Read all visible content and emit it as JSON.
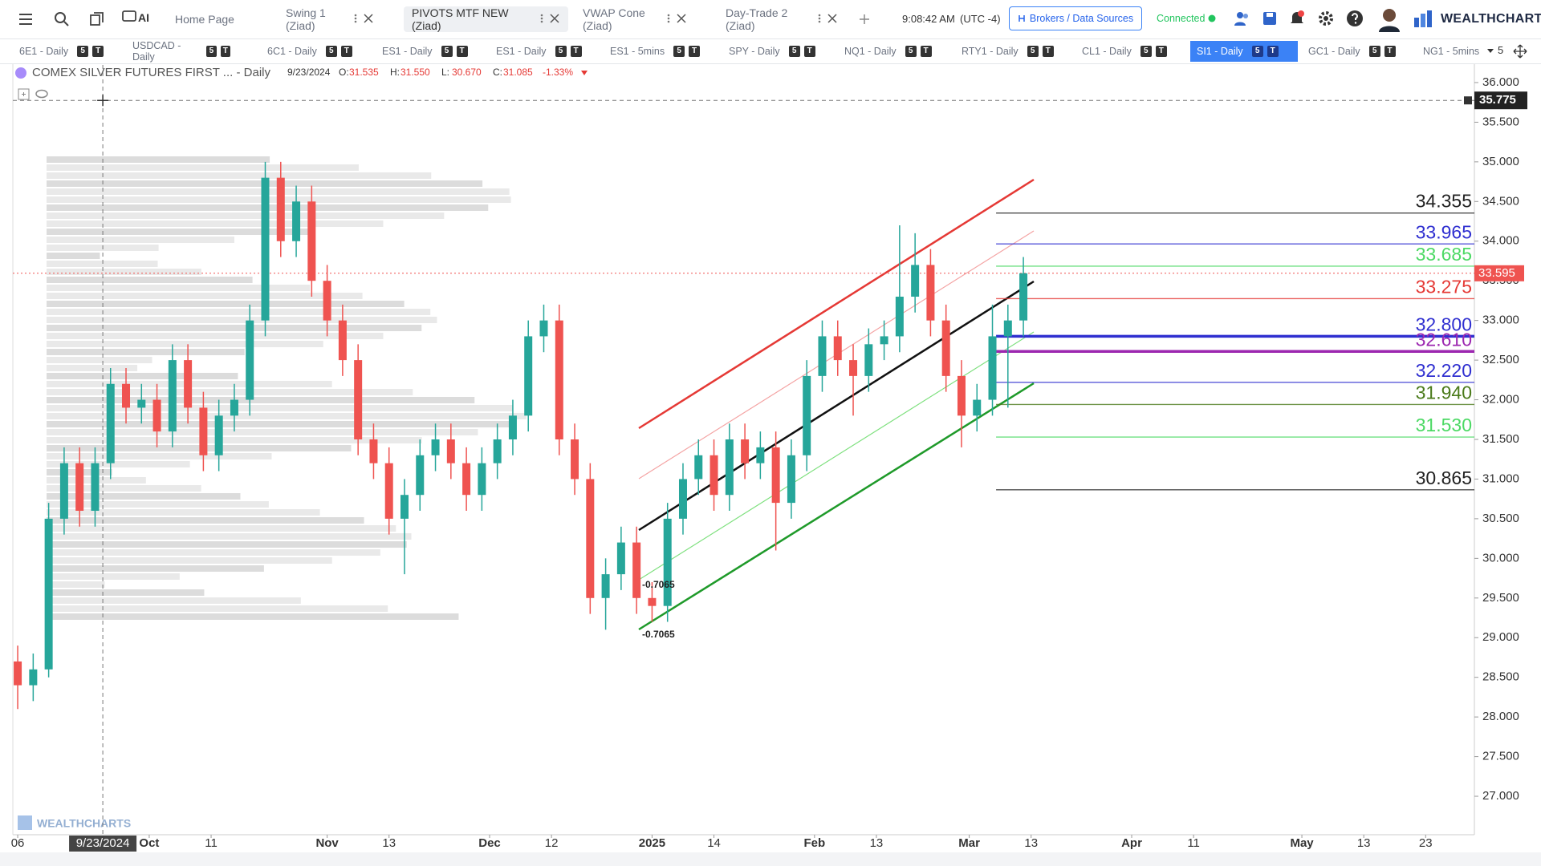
{
  "toolbar": {
    "ai_label": "AI",
    "tabs": [
      "Home Page",
      "Swing 1 (Ziad)",
      "PIVOTS MTF NEW (Ziad)",
      "VWAP Cone (Ziad)",
      "Day-Trade 2 (Ziad)"
    ],
    "active_tab": 2,
    "time": "9:08:42 AM",
    "timezone": "(UTC -4)",
    "brokers_button": "Brokers / Data Sources",
    "status": "Connected",
    "brand": "WEALTHCHARTS"
  },
  "symbol_tabs": [
    {
      "label": "6E1 - Daily",
      "badges": [
        "5",
        "T"
      ]
    },
    {
      "label": "USDCAD - Daily",
      "badges": [
        "5",
        "T"
      ]
    },
    {
      "label": "6C1 - Daily",
      "badges": [
        "5",
        "T"
      ]
    },
    {
      "label": "ES1 - Daily",
      "badges": [
        "5",
        "T"
      ]
    },
    {
      "label": "ES1 - Daily",
      "badges": [
        "5",
        "T"
      ]
    },
    {
      "label": "ES1 - 5mins",
      "badges": [
        "5",
        "T"
      ]
    },
    {
      "label": "SPY - Daily",
      "badges": [
        "5",
        "T"
      ]
    },
    {
      "label": "NQ1 - Daily",
      "badges": [
        "5",
        "T"
      ]
    },
    {
      "label": "RTY1 - Daily",
      "badges": [
        "5",
        "T"
      ]
    },
    {
      "label": "CL1 - Daily",
      "badges": [
        "5",
        "T"
      ]
    },
    {
      "label": "SI1 - Daily",
      "badges": [
        "5",
        "T"
      ]
    },
    {
      "label": "GC1 - Daily",
      "badges": [
        "5",
        "T"
      ]
    },
    {
      "label": "NG1 - 5mins",
      "badges": []
    }
  ],
  "active_symbol_tab": 10,
  "symbol_tabs_overflow": "5",
  "chart_legend": {
    "date": "9/23/2024",
    "items": [
      {
        "key": "O:",
        "value": "31.535"
      },
      {
        "key": "H:",
        "value": "31.550"
      },
      {
        "key": "L:",
        "value": "30.670"
      },
      {
        "key": "C:",
        "value": "31.085"
      }
    ],
    "change": "-1.33%"
  },
  "watermark": "WEALTHCHARTS",
  "chart_data": {
    "type": "candlestick",
    "title": "COMEX SILVER FUTURES FIRST ... - Daily",
    "x": [
      0,
      2,
      4,
      6,
      8,
      10,
      12,
      14,
      16,
      18,
      20,
      22,
      24,
      26,
      28,
      30,
      32,
      34,
      36,
      38,
      40,
      42,
      44,
      46,
      48,
      50,
      52,
      54,
      56,
      58,
      60,
      62,
      64,
      66,
      68,
      70,
      72,
      74,
      76,
      78,
      80,
      82,
      84,
      86,
      88,
      90,
      92,
      94,
      96,
      98,
      100,
      102,
      104,
      106,
      108,
      110,
      112,
      114,
      116,
      118,
      120,
      122,
      124,
      126,
      128,
      130
    ],
    "open": [
      28.7,
      28.4,
      28.6,
      30.5,
      31.2,
      30.6,
      31.2,
      32.2,
      31.9,
      32.0,
      31.6,
      32.5,
      31.9,
      31.3,
      31.8,
      32.0,
      33.0,
      34.8,
      34.0,
      34.5,
      33.5,
      33.0,
      32.5,
      31.5,
      31.2,
      30.5,
      30.8,
      31.3,
      31.5,
      31.2,
      30.8,
      31.2,
      31.5,
      31.8,
      32.8,
      33.0,
      31.5,
      31.0,
      29.5,
      29.8,
      30.2,
      29.5,
      29.4,
      30.5,
      31.0,
      31.3,
      30.8,
      31.5,
      31.2,
      31.4,
      30.7,
      31.3,
      32.3,
      32.8,
      32.5,
      32.3,
      32.7,
      32.8,
      33.3,
      33.7,
      33.0,
      32.3,
      31.8,
      32.0,
      32.8,
      33.0
    ],
    "high": [
      28.9,
      28.8,
      30.7,
      31.4,
      31.4,
      31.4,
      32.4,
      32.4,
      32.2,
      32.2,
      32.7,
      32.7,
      32.1,
      32.0,
      32.2,
      33.2,
      35.0,
      35.0,
      34.7,
      34.7,
      33.7,
      33.2,
      32.7,
      31.7,
      31.4,
      31.0,
      31.5,
      31.7,
      31.7,
      31.4,
      31.4,
      31.7,
      32.0,
      33.0,
      33.2,
      33.2,
      31.7,
      31.2,
      30.0,
      30.4,
      30.4,
      29.7,
      30.7,
      31.2,
      31.5,
      31.5,
      31.7,
      31.7,
      31.6,
      31.6,
      31.5,
      32.5,
      33.0,
      33.0,
      32.7,
      32.9,
      33.0,
      34.2,
      34.1,
      33.9,
      33.2,
      32.5,
      32.2,
      33.2,
      33.2,
      33.8
    ],
    "low": [
      28.1,
      28.2,
      28.5,
      30.3,
      30.4,
      30.4,
      31.0,
      31.7,
      31.7,
      31.4,
      31.4,
      31.7,
      31.1,
      31.1,
      31.6,
      31.8,
      32.8,
      33.8,
      33.8,
      33.3,
      32.8,
      32.3,
      31.3,
      31.0,
      30.3,
      29.8,
      30.6,
      31.1,
      31.0,
      30.6,
      30.6,
      31.0,
      31.3,
      31.6,
      32.6,
      31.3,
      30.8,
      29.3,
      29.1,
      29.6,
      29.3,
      29.2,
      29.2,
      30.3,
      30.8,
      30.6,
      30.6,
      31.0,
      31.0,
      30.1,
      30.5,
      31.1,
      32.1,
      32.3,
      31.8,
      32.1,
      32.5,
      32.6,
      33.1,
      32.8,
      32.1,
      31.4,
      31.6,
      31.8,
      31.9,
      32.8
    ],
    "close": [
      28.4,
      28.6,
      30.5,
      31.2,
      30.6,
      31.2,
      32.2,
      31.9,
      32.0,
      31.6,
      32.5,
      31.9,
      31.3,
      31.8,
      32.0,
      33.0,
      34.8,
      34.0,
      34.5,
      33.5,
      33.0,
      32.5,
      31.5,
      31.2,
      30.5,
      30.8,
      31.3,
      31.5,
      31.2,
      30.8,
      31.2,
      31.5,
      31.8,
      32.8,
      33.0,
      31.5,
      31.0,
      29.5,
      29.8,
      30.2,
      29.5,
      29.4,
      30.5,
      31.0,
      31.3,
      30.8,
      31.5,
      31.2,
      31.4,
      30.7,
      31.3,
      32.3,
      32.8,
      32.5,
      32.3,
      32.7,
      32.8,
      33.3,
      33.7,
      33.0,
      32.3,
      31.8,
      32.0,
      32.8,
      33.0,
      33.595
    ],
    "up_color": "#26a69a",
    "down_color": "#ef5350",
    "xlim": [
      -0.63,
      188.3
    ],
    "xticks": [
      {
        "value": 0,
        "label": "06"
      },
      {
        "value": 17,
        "label": "Oct"
      },
      {
        "value": 25,
        "label": "11"
      },
      {
        "value": 40,
        "label": "Nov"
      },
      {
        "value": 48,
        "label": "13"
      },
      {
        "value": 61,
        "label": "Dec"
      },
      {
        "value": 69,
        "label": "12"
      },
      {
        "value": 82,
        "label": "2025"
      },
      {
        "value": 90,
        "label": "14"
      },
      {
        "value": 103,
        "label": "Feb"
      },
      {
        "value": 111,
        "label": "13"
      },
      {
        "value": 123,
        "label": "Mar"
      },
      {
        "value": 131,
        "label": "13"
      },
      {
        "value": 144,
        "label": "Apr"
      },
      {
        "value": 152,
        "label": "11"
      },
      {
        "value": 166,
        "label": "May"
      },
      {
        "value": 174,
        "label": "13"
      },
      {
        "value": 182,
        "label": "23"
      }
    ],
    "ylim": [
      26.515,
      36.222
    ],
    "yticks": [
      {
        "value": 27,
        "label": "27.000"
      },
      {
        "value": 27.5,
        "label": "27.500"
      },
      {
        "value": 28,
        "label": "28.000"
      },
      {
        "value": 28.5,
        "label": "28.500"
      },
      {
        "value": 29,
        "label": "29.000"
      },
      {
        "value": 29.5,
        "label": "29.500"
      },
      {
        "value": 30,
        "label": "30.000"
      },
      {
        "value": 30.5,
        "label": "30.500"
      },
      {
        "value": 31,
        "label": "31.000"
      },
      {
        "value": 31.5,
        "label": "31.500"
      },
      {
        "value": 32,
        "label": "32.000"
      },
      {
        "value": 32.5,
        "label": "32.500"
      },
      {
        "value": 33,
        "label": "33.000"
      },
      {
        "value": 33.5,
        "label": "33.500"
      },
      {
        "value": 34,
        "label": "34.000"
      },
      {
        "value": 34.5,
        "label": "34.500"
      },
      {
        "value": 35,
        "label": "35.000"
      },
      {
        "value": 35.5,
        "label": "35.500"
      },
      {
        "value": 36,
        "label": "36.000"
      }
    ],
    "levels": {
      "values": [
        34.355,
        33.965,
        33.685,
        33.275,
        32.8,
        32.61,
        32.22,
        31.94,
        31.53,
        30.865
      ],
      "value_labels": [
        "34.355",
        "33.965",
        "33.685",
        "33.275",
        "32.800",
        "32.610",
        "32.220",
        "31.940",
        "31.530",
        "30.865"
      ],
      "colors": [
        "#222222",
        "#2f2fd0",
        "#4cd964",
        "#e53935",
        "#2f2fd0",
        "#9c27b0",
        "#2f2fd0",
        "#4a7a1a",
        "#4cd964",
        "#222222"
      ]
    },
    "last_price": {
      "value": 33.595,
      "color": "#ef5350"
    },
    "crosshair": {
      "x": 11,
      "date": "9/23/2024",
      "price": 35.775
    },
    "annotations": [
      "-0.7065",
      "-0.7065"
    ]
  }
}
